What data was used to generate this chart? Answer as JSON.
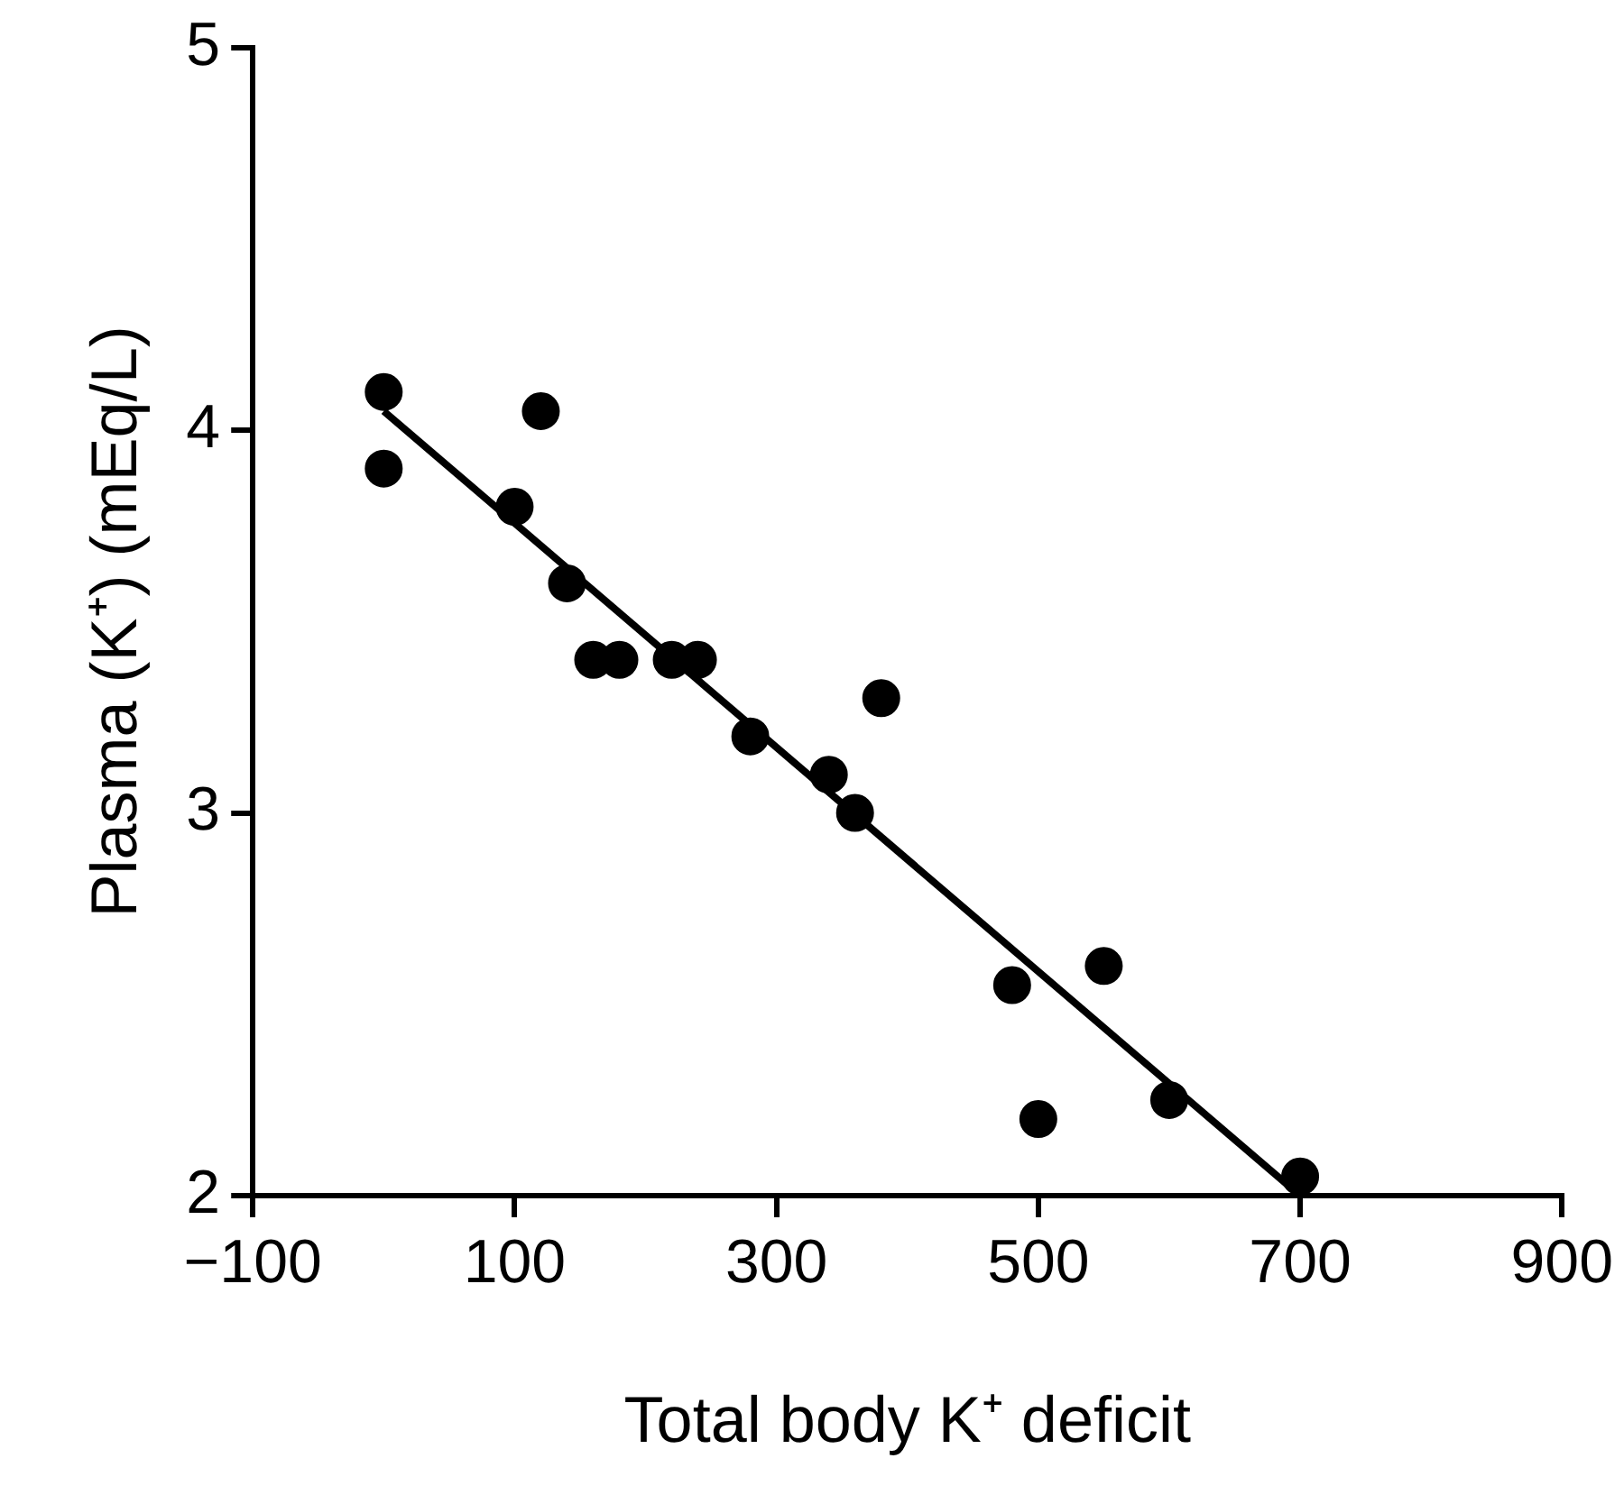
{
  "chart_data": {
    "type": "scatter",
    "xlabel": "Total body K⁺ deficit",
    "ylabel": "Plasma (K⁺) (mEq/L)",
    "xlim": [
      -100,
      900
    ],
    "ylim": [
      2,
      5
    ],
    "xticks": [
      {
        "value": -100,
        "label": "−100"
      },
      100,
      300,
      500,
      700,
      900
    ],
    "yticks": [
      2,
      3,
      4,
      5
    ],
    "series": [
      {
        "color": "#000000",
        "marker": "circle",
        "x": [
          0,
          0,
          120,
          100,
          140,
          160,
          180,
          220,
          240,
          280,
          340,
          360,
          380,
          480,
          550,
          500,
          600,
          700
        ],
        "values": [
          4.1,
          3.9,
          4.05,
          3.8,
          3.6,
          3.4,
          3.4,
          3.4,
          3.4,
          3.2,
          3.1,
          3.0,
          3.3,
          2.55,
          2.6,
          2.2,
          2.25,
          2.05
        ]
      },
      {
        "type": "line",
        "color": "#000000",
        "x": [
          0,
          700
        ],
        "values": [
          4.05,
          2.0
        ],
        "line_style": "solid",
        "marker": "none"
      }
    ]
  }
}
